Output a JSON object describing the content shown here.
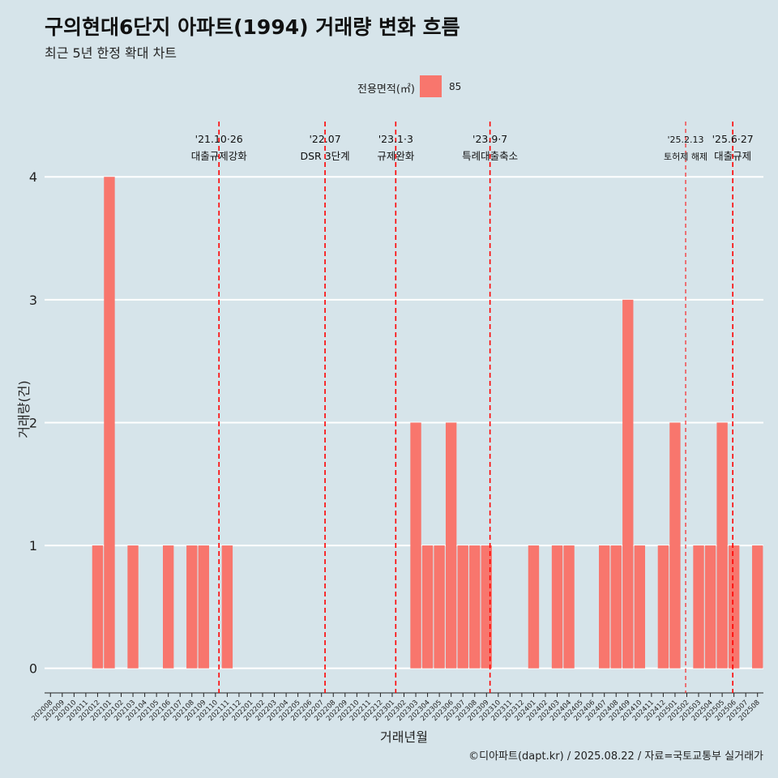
{
  "title": "구의현대6단지 아파트(1994) 거래량 변화 흐름",
  "subtitle": "최근 5년 한정 확대 차트",
  "caption": "©디아파트(dapt.kr) / 2025.08.22 / 자료=국토교통부 실거래가",
  "colors": {
    "background": "#d6e4ea",
    "bar": "#f8766d",
    "event_line": "#ff0000",
    "grid": "#ffffff"
  },
  "chart_data": {
    "type": "bar",
    "title": "구의현대6단지 아파트(1994) 거래량 변화 흐름",
    "xlabel": "거래년월",
    "ylabel": "거래량(건)",
    "ylim": [
      -0.2,
      4.45
    ],
    "yticks": [
      0,
      1,
      2,
      3,
      4
    ],
    "legend": {
      "title": "전용면적(㎡)",
      "entries": [
        "85"
      ],
      "position": "top"
    },
    "categories": [
      "202008",
      "202009",
      "202010",
      "202011",
      "202012",
      "202101",
      "202102",
      "202103",
      "202104",
      "202105",
      "202106",
      "202107",
      "202108",
      "202109",
      "202110",
      "202111",
      "202112",
      "202201",
      "202202",
      "202203",
      "202204",
      "202205",
      "202206",
      "202207",
      "202208",
      "202209",
      "202210",
      "202211",
      "202212",
      "202301",
      "202302",
      "202303",
      "202304",
      "202305",
      "202306",
      "202307",
      "202308",
      "202309",
      "202310",
      "202311",
      "202312",
      "202401",
      "202402",
      "202403",
      "202404",
      "202405",
      "202406",
      "202407",
      "202408",
      "202409",
      "202410",
      "202411",
      "202412",
      "202501",
      "202502",
      "202503",
      "202504",
      "202505",
      "202506",
      "202507",
      "202508"
    ],
    "series": [
      {
        "name": "85",
        "values": [
          0,
          0,
          0,
          0,
          1,
          4,
          0,
          1,
          0,
          0,
          1,
          0,
          1,
          1,
          0,
          1,
          0,
          0,
          0,
          0,
          0,
          0,
          0,
          0,
          0,
          0,
          0,
          0,
          0,
          0,
          0,
          2,
          1,
          1,
          2,
          1,
          1,
          1,
          0,
          0,
          0,
          1,
          0,
          1,
          1,
          0,
          0,
          1,
          1,
          3,
          1,
          0,
          1,
          2,
          0,
          1,
          1,
          2,
          1,
          0,
          1
        ]
      }
    ],
    "events": [
      {
        "date_label": "'21.10·26",
        "text": "대출규제강화",
        "month_index": 14.8,
        "thick": true
      },
      {
        "date_label": "'22.07",
        "text": "DSR 3단계",
        "month_index": 23.8,
        "thick": true
      },
      {
        "date_label": "'23.1·3",
        "text": "규제완화",
        "month_index": 29.8,
        "thick": true
      },
      {
        "date_label": "'23.9·7",
        "text": "특례대출축소",
        "month_index": 37.8,
        "thick": true
      },
      {
        "date_label": "'25.2.13",
        "text": "토허제 해제",
        "month_index": 54.4,
        "thick": false
      },
      {
        "date_label": "'25.6·27",
        "text": "대출규제",
        "month_index": 58.4,
        "thick": true
      }
    ]
  }
}
